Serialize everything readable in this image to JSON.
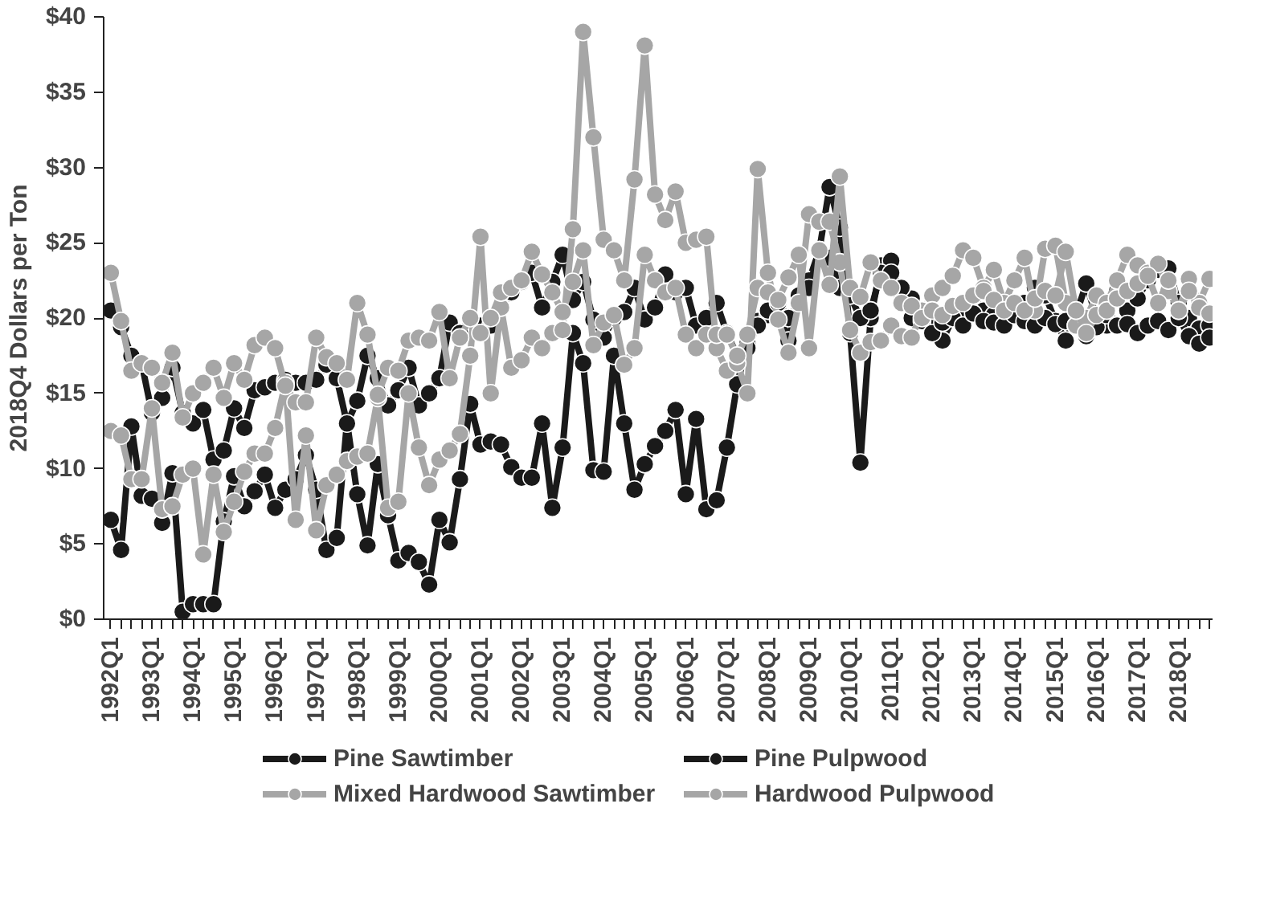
{
  "chart_data": {
    "type": "line",
    "ylabel": "2018Q4 Dollars per Ton",
    "categories": [
      "1992Q1",
      null,
      null,
      null,
      "1993Q1",
      null,
      null,
      null,
      "1994Q1",
      null,
      null,
      null,
      "1995Q1",
      null,
      null,
      null,
      "1996Q1",
      null,
      null,
      null,
      "1997Q1",
      null,
      null,
      null,
      "1998Q1",
      null,
      null,
      null,
      "1999Q1",
      null,
      null,
      null,
      "2000Q1",
      null,
      null,
      null,
      "2001Q1",
      null,
      null,
      null,
      "2002Q1",
      null,
      null,
      null,
      "2003Q1",
      null,
      null,
      null,
      "2004Q1",
      null,
      null,
      null,
      "2005Q1",
      null,
      null,
      null,
      "2006Q1",
      null,
      null,
      null,
      "2007Q1",
      null,
      null,
      null,
      "2008Q1",
      null,
      null,
      null,
      "2009Q1",
      null,
      null,
      null,
      "2010Q1",
      null,
      null,
      null,
      "2011Q1",
      null,
      null,
      null,
      "2012Q1",
      null,
      null,
      null,
      "2013Q1",
      null,
      null,
      null,
      "2014Q1",
      null,
      null,
      null,
      "2015Q1",
      null,
      null,
      null,
      "2016Q1",
      null,
      null,
      null,
      "2017Q1",
      null,
      null,
      null,
      "2018Q1",
      null,
      null,
      null
    ],
    "ylim": [
      0,
      40
    ],
    "yticks": [
      {
        "value": 0,
        "label": "$0"
      },
      {
        "value": 5,
        "label": "$5"
      },
      {
        "value": 10,
        "label": "$10"
      },
      {
        "value": 15,
        "label": "$15"
      },
      {
        "value": 20,
        "label": "$20"
      },
      {
        "value": 25,
        "label": "$25"
      },
      {
        "value": 30,
        "label": "$30"
      },
      {
        "value": 35,
        "label": "$35"
      },
      {
        "value": 40,
        "label": "$40"
      }
    ],
    "grid": false,
    "legend": "bottom",
    "marker": "circle",
    "line_style": "solid",
    "series": [
      {
        "name": "Pine Sawtimber",
        "color": "#1a1a1a",
        "values": [
          6.6,
          4.6,
          12.8,
          8.2,
          8.0,
          6.4,
          9.7,
          0.5,
          1.0,
          1.0,
          1.0,
          6.5,
          9.5,
          7.5,
          8.5,
          9.6,
          7.4,
          8.6,
          9.3,
          10.9,
          8.6,
          4.6,
          5.4,
          13.1,
          8.3,
          4.9,
          10.3,
          6.9,
          3.9,
          4.4,
          3.8,
          2.3,
          6.6,
          5.1,
          9.3,
          14.3,
          11.6,
          11.8,
          11.6,
          10.1,
          9.4,
          9.4,
          13.0,
          7.4,
          11.4,
          19.0,
          17.0,
          9.9,
          9.8,
          17.5,
          13.0,
          8.6,
          10.3,
          11.5,
          12.5,
          13.9,
          8.3,
          13.3,
          7.3,
          7.9,
          11.4,
          15.6,
          18.3,
          19.8,
          20.2,
          20.5,
          18.5,
          21.5,
          22.5,
          24.5,
          28.7,
          26.0,
          19.0,
          10.4,
          20.0,
          23.5,
          23.8,
          21.0,
          21.3,
          20.0,
          19.5,
          18.5,
          20.0,
          20.3,
          21.0,
          20.5,
          20.2,
          19.7,
          20.5,
          21.0,
          22.0,
          21.5,
          19.8,
          18.5,
          20.2,
          22.3,
          20.0,
          19.5,
          21.8,
          20.5,
          21.3,
          22.5,
          23.2,
          23.3,
          21.0,
          20.0,
          19.3,
          19.5
        ]
      },
      {
        "name": "Pine Pulpwood",
        "color": "#1a1a1a",
        "values": [
          20.5,
          19.4,
          17.5,
          17.0,
          13.7,
          14.7,
          16.7,
          13.7,
          13.0,
          13.9,
          10.6,
          11.2,
          14.0,
          12.7,
          15.2,
          15.4,
          15.7,
          15.9,
          15.7,
          15.7,
          15.9,
          16.9,
          16.0,
          13.0,
          14.5,
          17.5,
          16.0,
          14.2,
          15.2,
          16.7,
          14.2,
          15.0,
          16.0,
          19.7,
          19.0,
          20.0,
          19.5,
          19.5,
          20.7,
          21.7,
          22.4,
          23.0,
          20.7,
          22.4,
          24.2,
          21.2,
          22.4,
          19.9,
          18.7,
          20.0,
          20.4,
          22.0,
          19.9,
          20.7,
          22.9,
          21.7,
          22.0,
          19.5,
          20.0,
          21.0,
          19.0,
          17.5,
          18.0,
          19.5,
          20.5,
          21.0,
          20.0,
          21.0,
          22.0,
          24.5,
          24.0,
          22.0,
          21.5,
          20.0,
          20.5,
          23.0,
          23.0,
          22.0,
          20.0,
          19.8,
          19.0,
          19.7,
          20.0,
          19.5,
          20.3,
          19.8,
          19.7,
          19.5,
          20.2,
          19.8,
          19.5,
          20.0,
          19.6,
          19.8,
          19.5,
          18.8,
          19.4,
          20.2,
          19.5,
          19.6,
          19.0,
          19.5,
          19.8,
          19.2,
          20.0,
          18.8,
          18.3,
          18.7
        ]
      },
      {
        "name": "Mixed Hardwood Sawtimber",
        "color": "#a6a6a6",
        "values": [
          12.5,
          12.2,
          9.3,
          9.3,
          14.0,
          7.3,
          7.5,
          9.6,
          10.0,
          4.3,
          9.6,
          5.8,
          7.8,
          9.8,
          11.0,
          11.0,
          12.7,
          15.7,
          6.6,
          12.2,
          5.9,
          8.9,
          9.6,
          10.5,
          10.8,
          11.0,
          14.7,
          7.4,
          7.8,
          15.0,
          11.4,
          8.9,
          10.6,
          11.2,
          12.3,
          17.5,
          25.4,
          15.0,
          20.7,
          16.7,
          17.2,
          18.7,
          18.0,
          19.0,
          19.2,
          25.9,
          39.0,
          32.0,
          25.2,
          24.5,
          22.5,
          29.2,
          38.1,
          28.2,
          26.5,
          28.4,
          25.0,
          25.2,
          25.4,
          18.0,
          16.5,
          17.0,
          15.0,
          29.9,
          23.0,
          19.9,
          17.7,
          21.0,
          26.9,
          26.4,
          26.4,
          23.7,
          19.2,
          17.7,
          18.4,
          18.5,
          19.5,
          18.8,
          18.7,
          20.5,
          21.5,
          22.0,
          22.8,
          24.5,
          24.0,
          22.0,
          23.2,
          21.0,
          22.5,
          24.0,
          20.5,
          24.6,
          24.8,
          21.0,
          19.5,
          20.0,
          21.5,
          21.0,
          22.5,
          24.2,
          23.5,
          23.0,
          23.6,
          21.8,
          20.5,
          22.6,
          21.0,
          22.6
        ]
      },
      {
        "name": "Hardwood Pulpwood",
        "color": "#a6a6a6",
        "values": [
          23.0,
          19.8,
          16.5,
          17.0,
          16.7,
          15.7,
          17.7,
          13.4,
          15.0,
          15.7,
          16.7,
          14.7,
          17.0,
          15.9,
          18.2,
          18.7,
          18.0,
          15.5,
          14.4,
          14.4,
          18.7,
          17.4,
          17.0,
          15.9,
          21.0,
          18.9,
          14.9,
          16.7,
          16.5,
          18.5,
          18.7,
          18.5,
          20.4,
          16.0,
          18.7,
          20.0,
          19.0,
          20.0,
          21.7,
          22.0,
          22.5,
          24.4,
          22.9,
          21.7,
          20.4,
          22.4,
          24.5,
          18.2,
          19.7,
          20.2,
          16.9,
          18.0,
          24.2,
          22.5,
          21.7,
          22.0,
          18.9,
          18.0,
          18.9,
          18.9,
          18.9,
          17.5,
          18.9,
          22.0,
          21.7,
          21.2,
          22.7,
          24.2,
          18.0,
          24.5,
          22.2,
          29.4,
          22.0,
          21.4,
          23.7,
          22.5,
          22.0,
          21.0,
          20.8,
          20.0,
          20.5,
          20.2,
          20.8,
          21.0,
          21.5,
          21.8,
          21.2,
          20.5,
          21.0,
          20.5,
          21.3,
          21.8,
          21.5,
          24.4,
          20.5,
          19.0,
          20.2,
          20.5,
          21.3,
          21.8,
          22.3,
          22.8,
          21.0,
          22.5,
          20.5,
          21.8,
          20.7,
          20.3
        ]
      }
    ]
  }
}
